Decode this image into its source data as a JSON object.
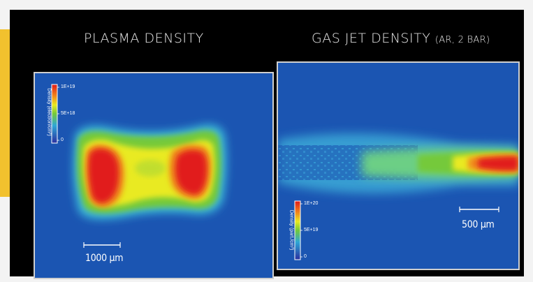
{
  "left_panel": {
    "title": "PLASMA DENSITY",
    "scale_bar": "1000 μm",
    "colorbar": {
      "axis_label": "Density (electron/cm³)",
      "ticks": [
        "1E+19",
        "5E+18",
        "0"
      ]
    }
  },
  "right_panel": {
    "title_main": "GAS JET DENSITY",
    "title_sub": "(AR, 2 BAR)",
    "scale_bar": "500 μm",
    "colorbar": {
      "axis_label": "Density (part./cm³)",
      "ticks": [
        "1E+20",
        "5E+19",
        "0"
      ]
    }
  },
  "colors": {
    "accent": "#f2c12e",
    "background_field": "#1b55b2",
    "colormap": [
      "#1b55b2",
      "#2fa7d6",
      "#5fd0c0",
      "#74c93a",
      "#e9ea21",
      "#f08a1c",
      "#e11a1a"
    ]
  }
}
